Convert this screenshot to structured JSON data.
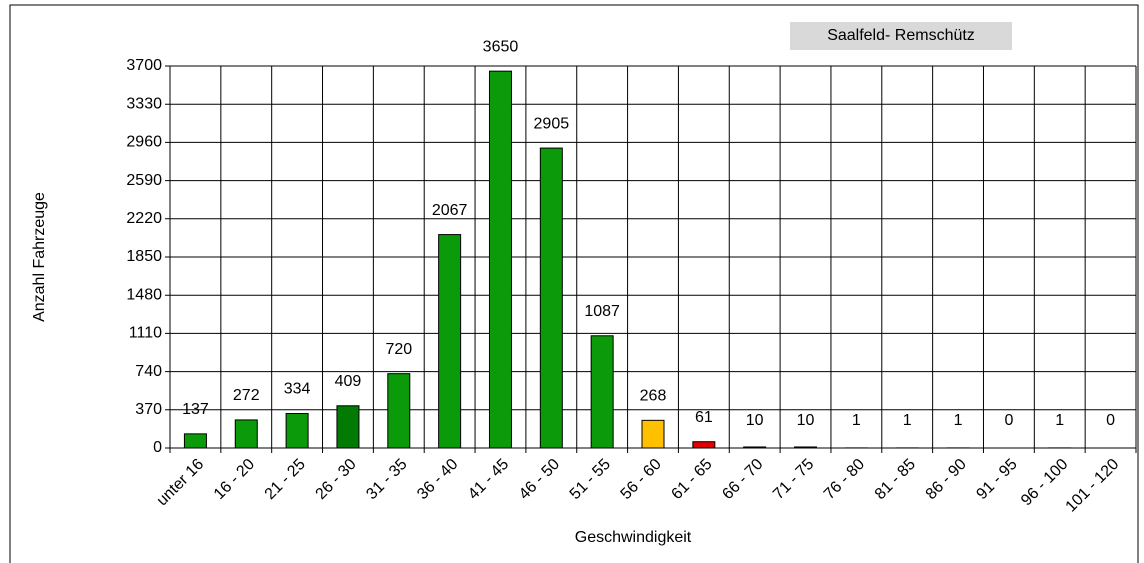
{
  "chart_data": {
    "type": "bar",
    "title": "Saalfeld- Remschütz",
    "ylabel": "Anzahl Fahrzeuge",
    "xlabel": "Geschwindigkeit",
    "categories": [
      "unter 16",
      "16 - 20",
      "21 - 25",
      "26 - 30",
      "31 - 35",
      "36 - 40",
      "41 - 45",
      "46 - 50",
      "51 - 55",
      "56 - 60",
      "61 - 65",
      "66 - 70",
      "71 - 75",
      "76 - 80",
      "81 - 85",
      "86 - 90",
      "91 - 95",
      "96 - 100",
      "101 - 120"
    ],
    "values": [
      137,
      272,
      334,
      409,
      720,
      2067,
      3650,
      2905,
      1087,
      268,
      61,
      10,
      10,
      1,
      1,
      1,
      0,
      1,
      0
    ],
    "colors": [
      "#0a9a0a",
      "#0a9a0a",
      "#0a9a0a",
      "#037a03",
      "#0a9a0a",
      "#0a9a0a",
      "#0a9a0a",
      "#0a9a0a",
      "#0a9a0a",
      "#ffc000",
      "#e00000",
      "#0a9a0a",
      "#0a9a0a",
      "#0a9a0a",
      "#0a9a0a",
      "#0a9a0a",
      "#0a9a0a",
      "#0a9a0a",
      "#0a9a0a"
    ],
    "ylim": [
      0,
      3700
    ],
    "yticks": [
      0,
      370,
      740,
      1110,
      1480,
      1850,
      2220,
      2590,
      2960,
      3330,
      3700
    ],
    "grid": true
  }
}
